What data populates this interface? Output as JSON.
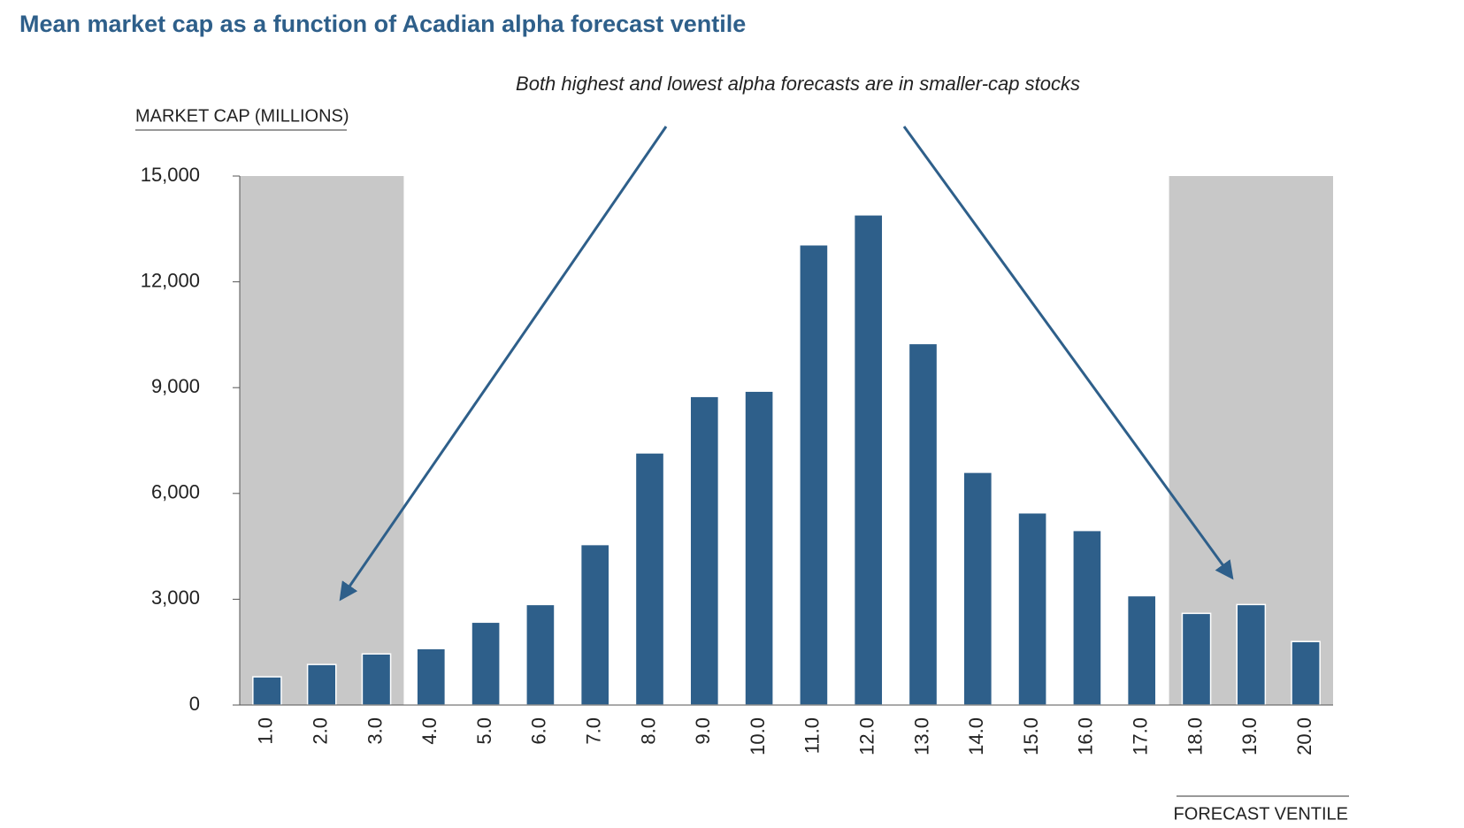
{
  "chart_data": {
    "type": "bar",
    "title": "Mean market cap as a function of Acadian alpha forecast ventile",
    "annotation": "Both highest and lowest alpha forecasts are in smaller-cap stocks",
    "y_label": "MARKET CAP (MILLIONS)",
    "x_label": "FORECAST VENTILE",
    "categories": [
      "1.0",
      "2.0",
      "3.0",
      "4.0",
      "5.0",
      "6.0",
      "7.0",
      "8.0",
      "9.0",
      "10.0",
      "11.0",
      "12.0",
      "13.0",
      "14.0",
      "15.0",
      "16.0",
      "17.0",
      "18.0",
      "19.0",
      "20.0"
    ],
    "values": [
      800,
      1150,
      1450,
      1600,
      2350,
      2850,
      4550,
      7150,
      8750,
      8900,
      13050,
      13900,
      10250,
      6600,
      5450,
      4950,
      3100,
      2600,
      2850,
      1800
    ],
    "color": "#2e5f8a",
    "ylim": [
      0,
      15000
    ],
    "yticks": [
      0,
      {
        "value": 3000,
        "label": "3,000"
      },
      {
        "value": 6000,
        "label": "6,000"
      },
      {
        "value": 9000,
        "label": "9,000"
      },
      {
        "value": 12000,
        "label": "12,000"
      },
      {
        "value": 15000,
        "label": "15,000"
      }
    ],
    "grid": false
  }
}
